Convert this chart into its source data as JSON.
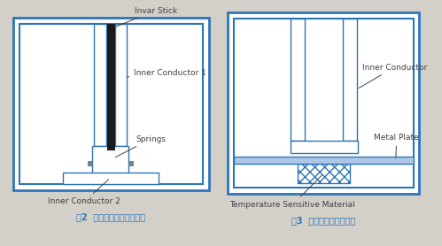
{
  "bg_color": "#d3d0ca",
  "blue": "#2E75B6",
  "black": "#1a1a1a",
  "white": "#ffffff",
  "label_color": "#404040",
  "caption_color": "#2E75B6",
  "fig_width": 4.99,
  "fig_height": 2.78,
  "caption1": "图2  限制同轴腔内导体技术",
  "caption2": "图3  同轴腔电容补偿技术",
  "label_invar": "Invar Stick",
  "label_inner1": "Inner Conductor 1",
  "label_springs": "Springs",
  "label_inner2": "Inner Conductor 2",
  "label_inner_cond": "Inner Conductor",
  "label_metal": "Metal Plate",
  "label_temp": "Temperature Sensitive Material"
}
